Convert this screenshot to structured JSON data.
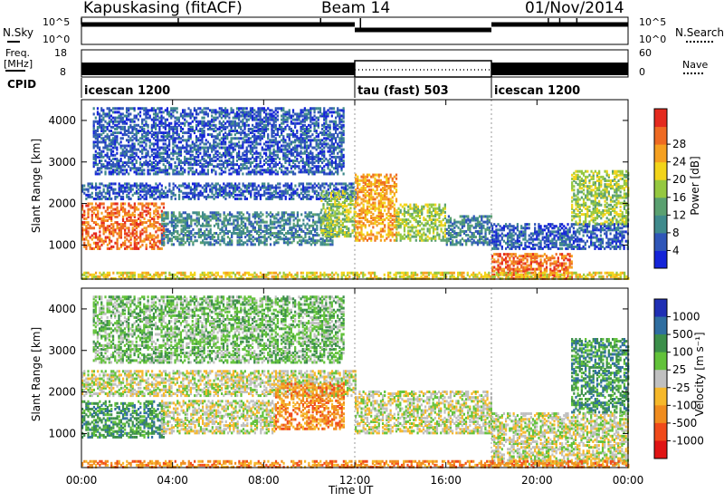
{
  "header": {
    "station": "Kapuskasing (fitACF)",
    "beam": "Beam 14",
    "date": "01/Nov/2014"
  },
  "side_labels": {
    "nsky": "N.Sky",
    "nsky_ticks": [
      "10^5",
      "10^0"
    ],
    "nsearch": "N.Search",
    "nsearch_ticks": [
      "10^5",
      "10^0"
    ],
    "freq": "Freq.",
    "freq_unit": "[MHz]",
    "freq_ticks": [
      "18",
      "8"
    ],
    "nave": "Nave",
    "nave_ticks": [
      "60",
      "0"
    ],
    "cpid": "CPID"
  },
  "chart_data": [
    {
      "type": "line",
      "panel": "noise",
      "series": [
        {
          "name": "N.Sky",
          "segments": [
            {
              "x_range": [
                "00:00",
                "12:00"
              ],
              "level": "high"
            },
            {
              "x_range": [
                "12:00",
                "18:00"
              ],
              "level": "lower"
            },
            {
              "x_range": [
                "18:00",
                "24:00"
              ],
              "level": "high"
            }
          ]
        }
      ]
    },
    {
      "type": "line",
      "panel": "frequency",
      "series": [
        {
          "name": "Freq.",
          "segments": [
            {
              "x_range": [
                "00:00",
                "12:00"
              ],
              "value_mhz": 11
            },
            {
              "x_range": [
                "12:00",
                "18:00"
              ],
              "value_mhz": 14
            },
            {
              "x_range": [
                "18:00",
                "24:00"
              ],
              "value_mhz": 11
            }
          ]
        }
      ]
    },
    {
      "type": "table",
      "panel": "cpid",
      "modes": [
        {
          "label": "icescan 1200",
          "start": "00:00",
          "end": "12:00"
        },
        {
          "label": "tau (fast) 503",
          "start": "12:00",
          "end": "18:00"
        },
        {
          "label": "icescan 1200",
          "start": "18:00",
          "end": "24:00"
        }
      ]
    },
    {
      "type": "heatmap",
      "panel": "power",
      "ylabel": "Slant Range [km]",
      "ylim": [
        180,
        4500
      ],
      "yticks": [
        "1000",
        "2000",
        "3000",
        "4000"
      ],
      "colorbar": {
        "label": "Power [dB]",
        "ticks": [
          "4",
          "8",
          "12",
          "16",
          "20",
          "24",
          "28"
        ],
        "colors": [
          "#1424d8",
          "#2f56b8",
          "#3f8a8c",
          "#5aa070",
          "#95c840",
          "#f2d41a",
          "#f5a020",
          "#ee6a22",
          "#e42a1e"
        ]
      },
      "regions": [
        {
          "start_h": 0.0,
          "end_h": 3.6,
          "r0": 900,
          "r1": 2000,
          "level": 7
        },
        {
          "start_h": 0.0,
          "end_h": 12.0,
          "r0": 2100,
          "r1": 2500,
          "level": 1
        },
        {
          "start_h": 3.5,
          "end_h": 11.0,
          "r0": 1000,
          "r1": 1800,
          "level": 2
        },
        {
          "start_h": 0.5,
          "end_h": 11.5,
          "r0": 2700,
          "r1": 4300,
          "level": 1
        },
        {
          "start_h": 10.5,
          "end_h": 12.0,
          "r0": 1200,
          "r1": 2300,
          "level": 4
        },
        {
          "start_h": 12.0,
          "end_h": 13.8,
          "r0": 1100,
          "r1": 2700,
          "level": 6
        },
        {
          "start_h": 13.8,
          "end_h": 16.0,
          "r0": 1100,
          "r1": 2000,
          "level": 4
        },
        {
          "start_h": 16.0,
          "end_h": 18.0,
          "r0": 1000,
          "r1": 1700,
          "level": 2
        },
        {
          "start_h": 18.0,
          "end_h": 24.0,
          "r0": 900,
          "r1": 1500,
          "level": 1
        },
        {
          "start_h": 21.5,
          "end_h": 24.0,
          "r0": 1500,
          "r1": 2800,
          "level": 4
        },
        {
          "start_h": 18.0,
          "end_h": 21.5,
          "r0": 180,
          "r1": 800,
          "level": 7
        },
        {
          "start_h": 0.0,
          "end_h": 24.0,
          "r0": 180,
          "r1": 350,
          "level": 5
        }
      ]
    },
    {
      "type": "heatmap",
      "panel": "velocity",
      "xlabel": "Time UT",
      "ylabel": "Slant Range [km]",
      "ylim": [
        180,
        4500
      ],
      "yticks": [
        "1000",
        "2000",
        "3000",
        "4000"
      ],
      "xticks": [
        "00:00",
        "04:00",
        "08:00",
        "12:00",
        "16:00",
        "20:00",
        "00:00"
      ],
      "colorbar": {
        "label": "Velocity [m s⁻¹]",
        "ticks": [
          "1000",
          "500",
          "100",
          "25",
          "-25",
          "-100",
          "-500",
          "-1000"
        ],
        "colors": [
          "#1f2fb4",
          "#2f6ea0",
          "#3c8f4a",
          "#62c23a",
          "#c0c0c0",
          "#f6b82a",
          "#f08c1e",
          "#f04a1a",
          "#e01414"
        ]
      },
      "regions": [
        {
          "start_h": 0.0,
          "end_h": 3.6,
          "r0": 900,
          "r1": 1800,
          "level": 2
        },
        {
          "start_h": 0.0,
          "end_h": 12.0,
          "r0": 1900,
          "r1": 2500,
          "level": 4
        },
        {
          "start_h": 3.5,
          "end_h": 8.5,
          "r0": 1000,
          "r1": 1800,
          "level": 4
        },
        {
          "start_h": 8.5,
          "end_h": 11.5,
          "r0": 1100,
          "r1": 2200,
          "level": 6
        },
        {
          "start_h": 0.5,
          "end_h": 11.5,
          "r0": 2700,
          "r1": 4300,
          "level": 3
        },
        {
          "start_h": 12.0,
          "end_h": 18.0,
          "r0": 1000,
          "r1": 2000,
          "level": 4
        },
        {
          "start_h": 18.0,
          "end_h": 24.0,
          "r0": 250,
          "r1": 1500,
          "level": 4
        },
        {
          "start_h": 21.5,
          "end_h": 24.0,
          "r0": 1500,
          "r1": 3300,
          "level": 2
        },
        {
          "start_h": 0.0,
          "end_h": 24.0,
          "r0": 180,
          "r1": 350,
          "level": 6
        }
      ]
    }
  ]
}
